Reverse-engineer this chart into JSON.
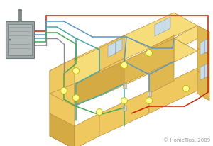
{
  "bg_color": "#ffffff",
  "wall_face": "#f5d070",
  "wall_side": "#e8c060",
  "wall_dark": "#d4ac50",
  "wall_edge": "#b89040",
  "panel_body": "#9ca8a8",
  "panel_inner": "#b0b8b8",
  "panel_edge": "#707878",
  "wire_red": "#cc2200",
  "wire_blue": "#5599cc",
  "wire_green": "#44aa55",
  "wire_teal": "#44aaaa",
  "wire_gray": "#888899",
  "wire_dark": "#445566",
  "light_fill": "#ffff88",
  "light_edge": "#bbbb00",
  "copyright": "© HomeTips, 2009",
  "copy_color": "#999999",
  "copy_size": 5
}
